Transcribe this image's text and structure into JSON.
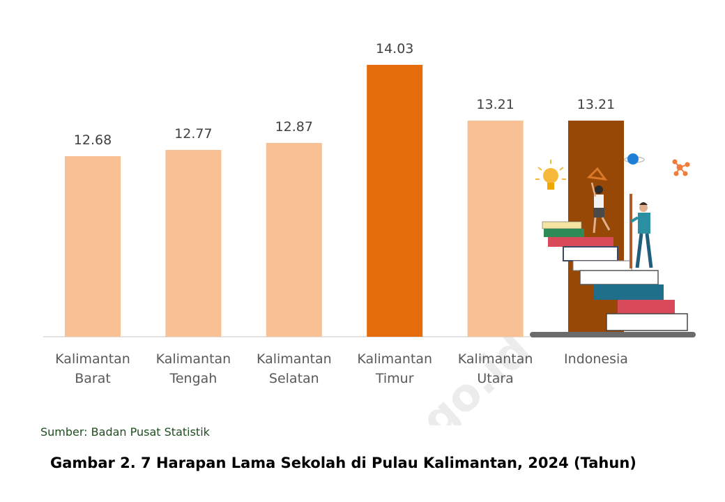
{
  "chart_data": {
    "type": "bar",
    "categories": [
      [
        "Kalimantan",
        "Barat"
      ],
      [
        "Kalimantan",
        "Tengah"
      ],
      [
        "Kalimantan",
        "Selatan"
      ],
      [
        "Kalimantan",
        "Timur"
      ],
      [
        "Kalimantan",
        "Utara"
      ],
      [
        "Indonesia"
      ]
    ],
    "values": [
      12.68,
      12.77,
      12.87,
      14.03,
      13.21,
      13.21
    ],
    "value_labels": [
      "12.68",
      "12.77",
      "12.87",
      "14.03",
      "13.21",
      "13.21"
    ],
    "colors": [
      "#f9c193",
      "#f9c193",
      "#f9c193",
      "#e46c0a",
      "#f9c193",
      "#974806"
    ],
    "y_axis_visible": false,
    "grid": false,
    "legend": "none"
  },
  "watermark": "bps.go.id",
  "source": "Sumber: Badan Pusat Statistik",
  "caption": "Gambar 2. 7 Harapan Lama Sekolah di Pulau Kalimantan, 2024 (Tahun)"
}
